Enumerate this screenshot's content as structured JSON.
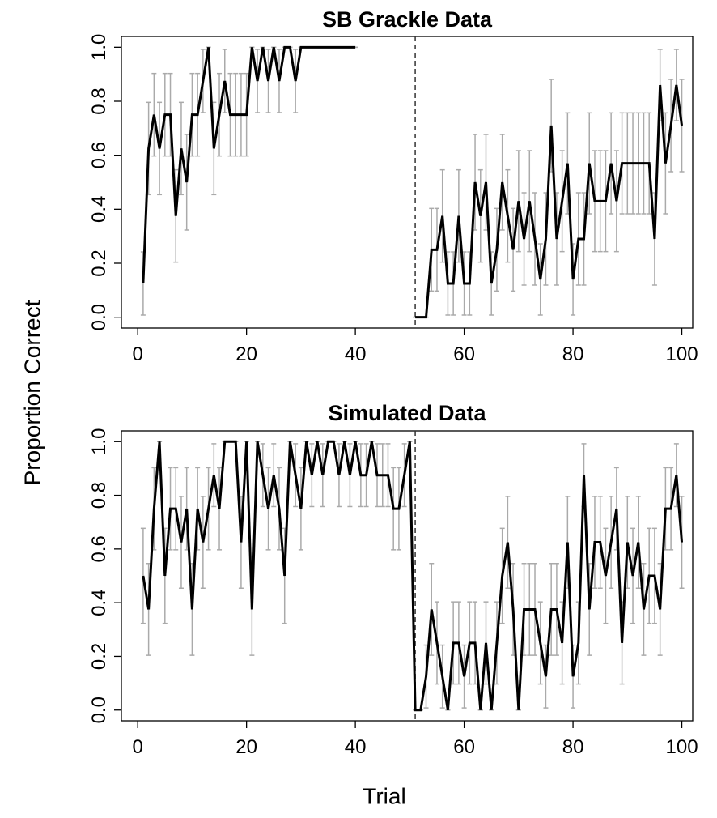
{
  "chart_data": [
    {
      "type": "line",
      "title": "SB Grackle Data",
      "ylabel": "Proportion Correct",
      "x": [
        1,
        2,
        3,
        4,
        5,
        6,
        7,
        8,
        9,
        10,
        11,
        12,
        13,
        14,
        15,
        16,
        17,
        18,
        19,
        20,
        21,
        22,
        23,
        24,
        25,
        26,
        27,
        28,
        29,
        30,
        31,
        32,
        33,
        34,
        35,
        36,
        37,
        38,
        39,
        40,
        41,
        42,
        43,
        44,
        45,
        46,
        47,
        48,
        49,
        50,
        51,
        52,
        53,
        54,
        55,
        56,
        57,
        58,
        59,
        60,
        61,
        62,
        63,
        64,
        65,
        66,
        67,
        68,
        69,
        70,
        71,
        72,
        73,
        74,
        75,
        76,
        77,
        78,
        79,
        80,
        81,
        82,
        83,
        84,
        85,
        86,
        87,
        88,
        89,
        90,
        91,
        92,
        93,
        94,
        95,
        96,
        97,
        98,
        99,
        100
      ],
      "values": [
        0.125,
        0.625,
        0.75,
        0.625,
        0.75,
        0.75,
        0.375,
        0.625,
        0.5,
        0.75,
        0.75,
        0.875,
        1,
        0.625,
        0.75,
        0.875,
        0.75,
        0.75,
        0.75,
        0.75,
        1,
        0.875,
        1,
        0.875,
        1,
        0.875,
        1,
        1,
        0.875,
        1,
        1,
        1,
        1,
        1,
        1,
        1,
        1,
        1,
        1,
        1,
        null,
        null,
        null,
        null,
        null,
        null,
        null,
        null,
        null,
        null,
        0,
        0,
        0,
        0.25,
        0.25,
        0.375,
        0.125,
        0.125,
        0.375,
        0.125,
        0.125,
        0.5,
        0.375,
        0.5,
        0.125,
        0.25,
        0.5,
        0.375,
        0.25,
        0.43,
        0.29,
        0.43,
        0.29,
        0.14,
        0.29,
        0.71,
        0.29,
        0.43,
        0.57,
        0.14,
        0.29,
        0.29,
        0.57,
        0.43,
        0.43,
        0.43,
        0.57,
        0.43,
        0.57,
        0.57,
        0.57,
        0.57,
        0.57,
        0.57,
        0.29,
        0.86,
        0.57,
        0.71,
        0.86,
        0.71
      ],
      "errors": [
        0.117,
        0.171,
        0.153,
        0.171,
        0.153,
        0.153,
        0.171,
        0.171,
        0.177,
        0.153,
        0.153,
        0.117,
        0,
        0.171,
        0.153,
        0.117,
        0.153,
        0.153,
        0.153,
        0.153,
        0,
        0.117,
        0,
        0.117,
        0,
        0.117,
        0,
        0,
        0.117,
        0,
        0,
        0,
        0,
        0,
        0,
        0,
        0,
        0,
        0,
        0,
        null,
        null,
        null,
        null,
        null,
        null,
        null,
        null,
        null,
        null,
        0,
        0,
        0,
        0.153,
        0.153,
        0.171,
        0.117,
        0.117,
        0.171,
        0.117,
        0.117,
        0.177,
        0.171,
        0.177,
        0.117,
        0.153,
        0.177,
        0.171,
        0.153,
        0.187,
        0.171,
        0.187,
        0.171,
        0.132,
        0.171,
        0.171,
        0.171,
        0.187,
        0.187,
        0.132,
        0.171,
        0.171,
        0.187,
        0.187,
        0.187,
        0.187,
        0.187,
        0.187,
        0.187,
        0.187,
        0.187,
        0.187,
        0.187,
        0.187,
        0.171,
        0.132,
        0.187,
        0.171,
        0.132,
        0.171
      ],
      "color": "#000000",
      "error_color": "#aaaaaa",
      "vline": 51,
      "xlim": [
        -3,
        102
      ],
      "ylim": [
        -0.04,
        1.04
      ],
      "xticks": [
        0,
        20,
        40,
        60,
        80,
        100
      ],
      "yticks": [
        {
          "value": 0,
          "label": "0.0"
        },
        0.2,
        0.4,
        0.6,
        0.8,
        {
          "value": 1,
          "label": "1.0"
        }
      ]
    },
    {
      "type": "line",
      "title": "Simulated Data",
      "xlabel": "Trial",
      "x": [
        1,
        2,
        3,
        4,
        5,
        6,
        7,
        8,
        9,
        10,
        11,
        12,
        13,
        14,
        15,
        16,
        17,
        18,
        19,
        20,
        21,
        22,
        23,
        24,
        25,
        26,
        27,
        28,
        29,
        30,
        31,
        32,
        33,
        34,
        35,
        36,
        37,
        38,
        39,
        40,
        41,
        42,
        43,
        44,
        45,
        46,
        47,
        48,
        49,
        50,
        51,
        52,
        53,
        54,
        55,
        56,
        57,
        58,
        59,
        60,
        61,
        62,
        63,
        64,
        65,
        66,
        67,
        68,
        69,
        70,
        71,
        72,
        73,
        74,
        75,
        76,
        77,
        78,
        79,
        80,
        81,
        82,
        83,
        84,
        85,
        86,
        87,
        88,
        89,
        90,
        91,
        92,
        93,
        94,
        95,
        96,
        97,
        98,
        99,
        100
      ],
      "values": [
        0.5,
        0.375,
        0.75,
        1,
        0.5,
        0.75,
        0.75,
        0.625,
        0.75,
        0.375,
        0.75,
        0.625,
        0.75,
        0.875,
        0.75,
        1,
        1,
        1,
        0.625,
        1,
        0.375,
        1,
        0.875,
        0.75,
        0.875,
        0.75,
        0.5,
        1,
        0.875,
        0.75,
        1,
        0.875,
        1,
        0.875,
        1,
        1,
        0.875,
        1,
        0.875,
        1,
        0.875,
        0.875,
        1,
        0.875,
        0.875,
        0.875,
        0.75,
        0.75,
        0.875,
        1,
        0,
        0,
        0.125,
        0.375,
        0.25,
        0.125,
        0,
        0.25,
        0.25,
        0.125,
        0.25,
        0.25,
        0,
        0.25,
        0,
        0.25,
        0.5,
        0.625,
        0.375,
        0,
        0.375,
        0.375,
        0.375,
        0.25,
        0.125,
        0.375,
        0.375,
        0.25,
        0.625,
        0.125,
        0.25,
        0.875,
        0.375,
        0.625,
        0.625,
        0.5,
        0.625,
        0.75,
        0.25,
        0.625,
        0.5,
        0.625,
        0.375,
        0.5,
        0.5,
        0.375,
        0.75,
        0.75,
        0.875,
        0.625
      ],
      "errors": [
        0.177,
        0.171,
        0.153,
        0,
        0.177,
        0.153,
        0.153,
        0.171,
        0.153,
        0.171,
        0.153,
        0.171,
        0.153,
        0.117,
        0.153,
        0,
        0,
        0,
        0.171,
        0,
        0.171,
        0,
        0.117,
        0.153,
        0.117,
        0.153,
        0.177,
        0,
        0.117,
        0.153,
        0,
        0.117,
        0,
        0.117,
        0,
        0,
        0.117,
        0,
        0.117,
        0,
        0.117,
        0.117,
        0,
        0.117,
        0.117,
        0.117,
        0.153,
        0.153,
        0.117,
        0,
        0,
        0,
        0.117,
        0.171,
        0.153,
        0.117,
        0,
        0.153,
        0.153,
        0.117,
        0.153,
        0.153,
        0,
        0.153,
        0,
        0.153,
        0.177,
        0.171,
        0.171,
        0,
        0.171,
        0.171,
        0.171,
        0.153,
        0.117,
        0.171,
        0.171,
        0.153,
        0.171,
        0.117,
        0.153,
        0.117,
        0.171,
        0.171,
        0.171,
        0.177,
        0.171,
        0.153,
        0.153,
        0.171,
        0.177,
        0.171,
        0.171,
        0.177,
        0.177,
        0.171,
        0.153,
        0.153,
        0.117,
        0.171
      ],
      "color": "#000000",
      "error_color": "#aaaaaa",
      "vline": 51,
      "xlim": [
        -3,
        102
      ],
      "ylim": [
        -0.04,
        1.04
      ],
      "xticks": [
        0,
        20,
        40,
        60,
        80,
        100
      ],
      "yticks": [
        {
          "value": 0,
          "label": "0.0"
        },
        0.2,
        0.4,
        0.6,
        0.8,
        {
          "value": 1,
          "label": "1.0"
        }
      ]
    }
  ]
}
